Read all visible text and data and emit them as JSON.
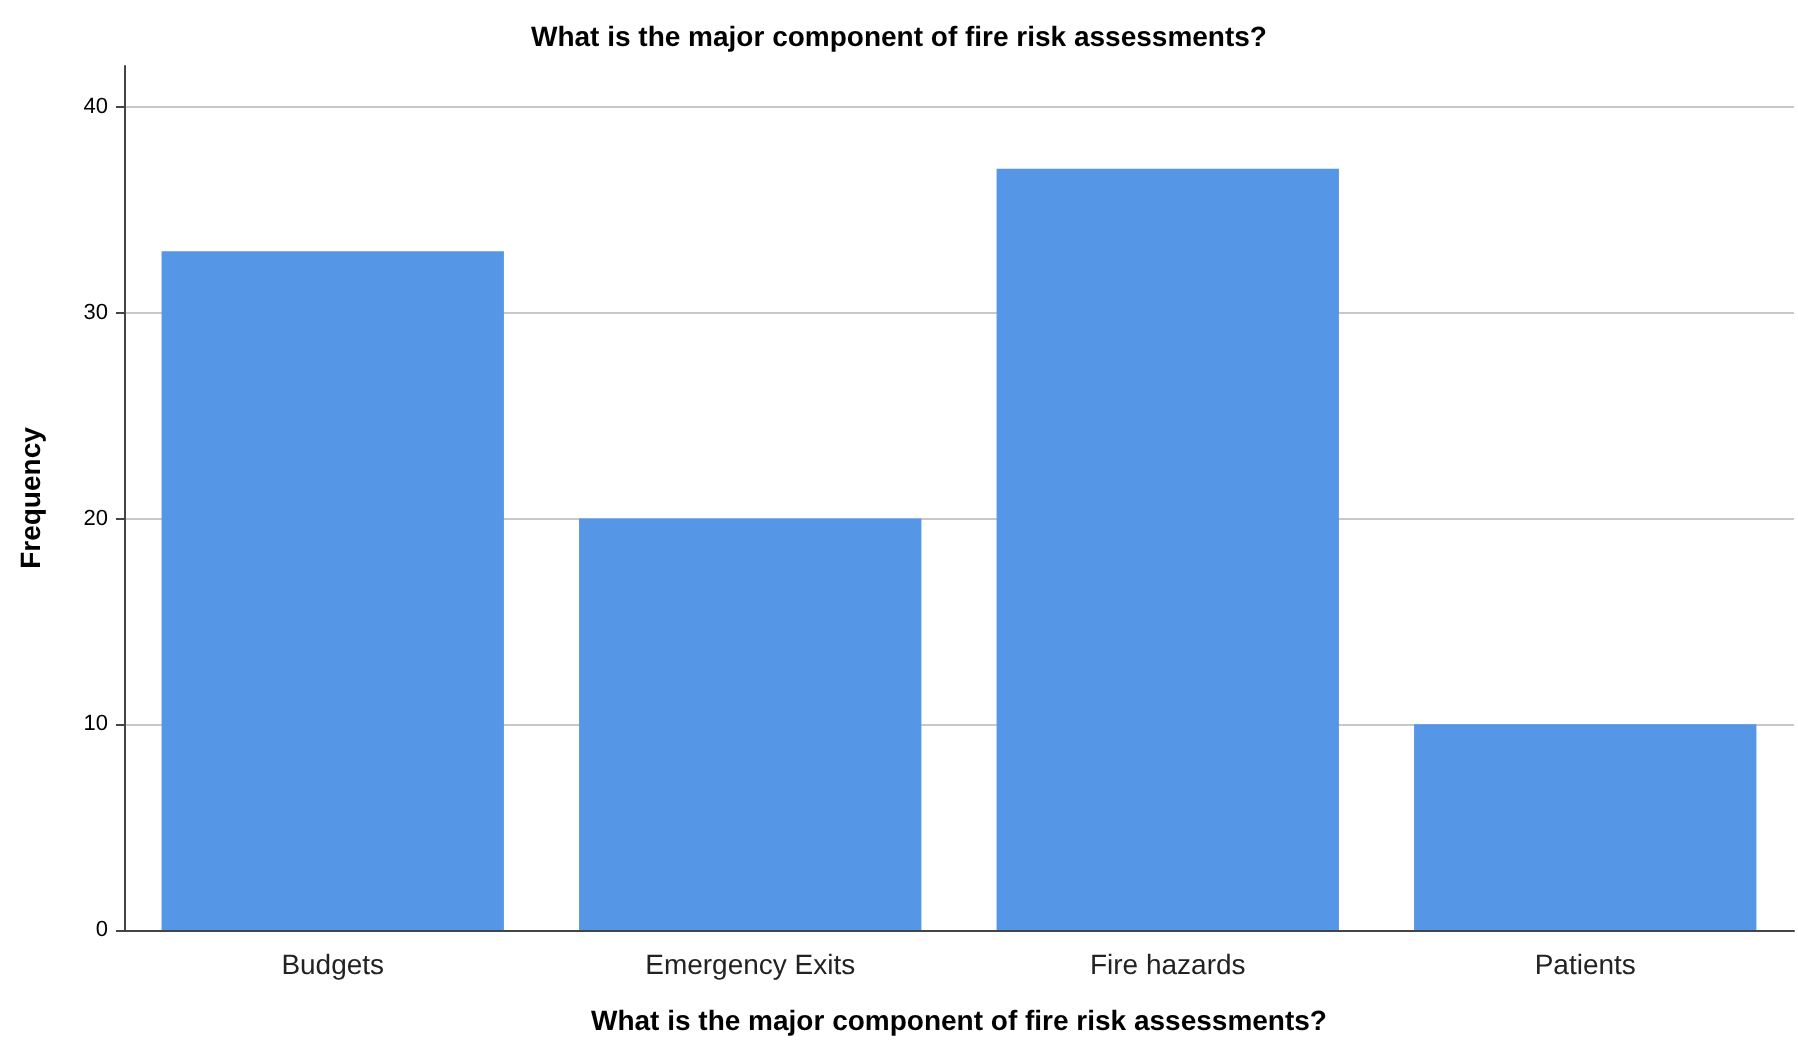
{
  "chart_data": {
    "type": "bar",
    "title": "What is the major component of fire risk assessments?",
    "xlabel": "What is the major component of fire risk assessments?",
    "ylabel": "Frequency",
    "categories": [
      "Budgets",
      "Emergency Exits",
      "Fire hazards",
      "Patients"
    ],
    "values": [
      33,
      20,
      37,
      10
    ],
    "color": "#5596e6",
    "ylim": [
      0,
      42
    ],
    "yticks": [
      0,
      10,
      20,
      30,
      40
    ],
    "grid": "y"
  }
}
